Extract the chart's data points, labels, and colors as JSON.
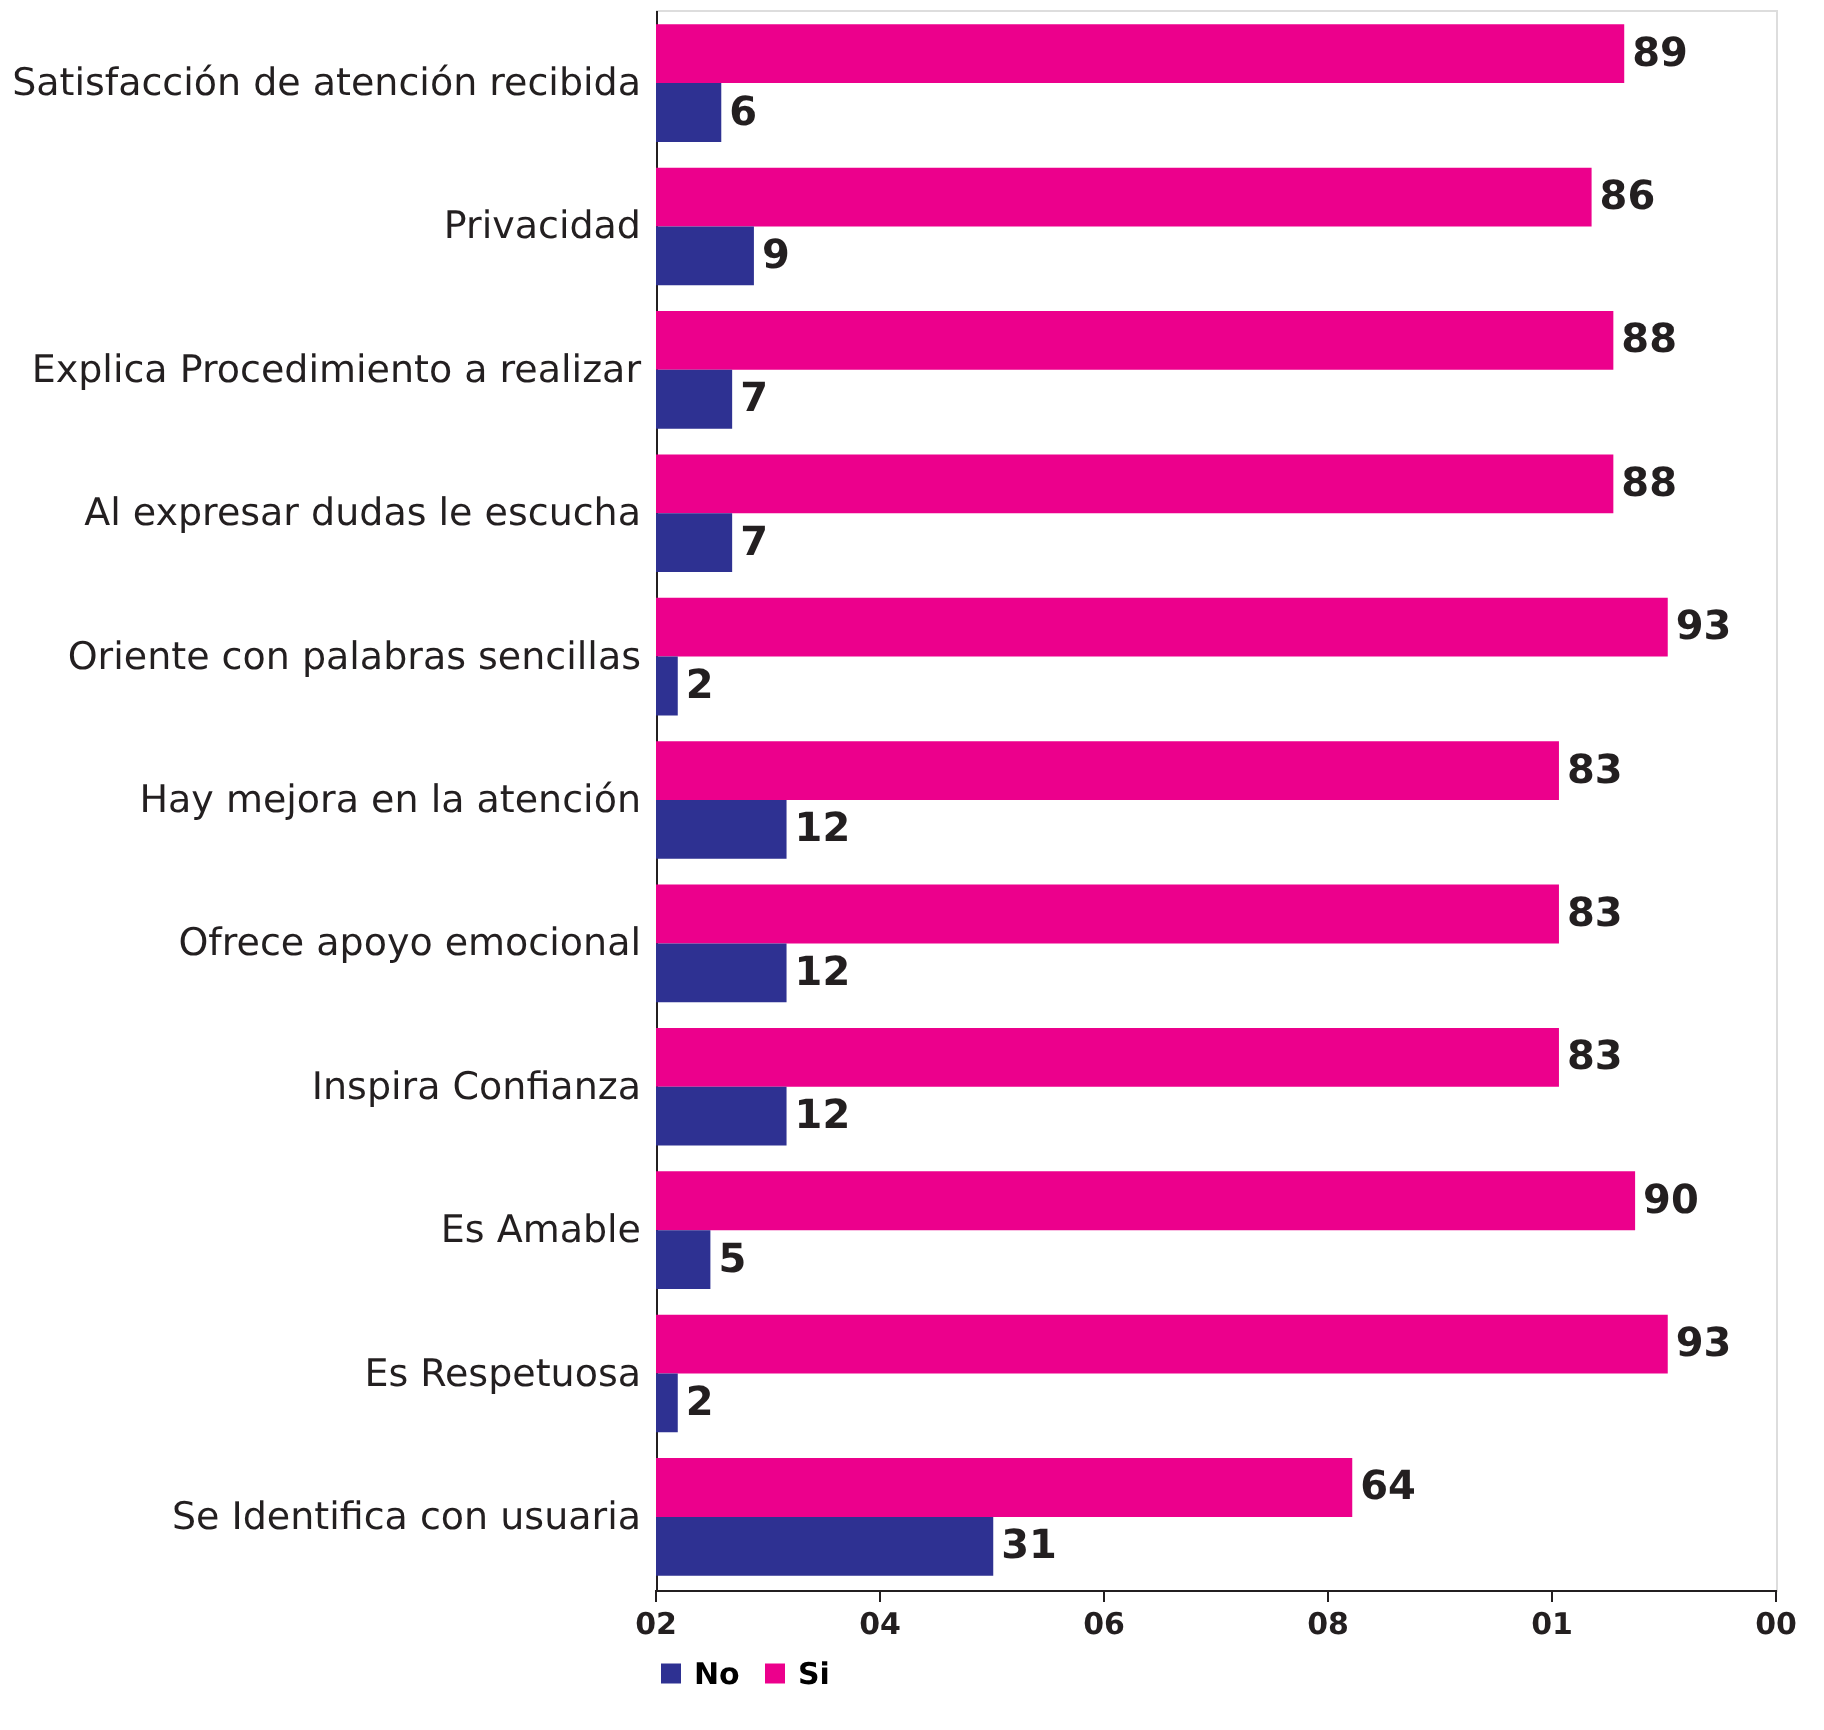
{
  "chart_data": {
    "type": "bar",
    "orientation": "horizontal",
    "categories": [
      "Satisfacción de atención recibida",
      "Privacidad",
      "Explica Procedimiento a realizar",
      "Al expresar dudas le escucha",
      "Oriente con palabras sencillas",
      "Hay mejora en la atención",
      "Ofrece apoyo emocional",
      "Inspira Confianza",
      "Es Amable",
      "Es Respetuosa",
      "Se Identifica con usuaria"
    ],
    "series": [
      {
        "name": "Si",
        "color": "#ec008c",
        "values": [
          89,
          86,
          88,
          88,
          93,
          83,
          83,
          83,
          90,
          93,
          64
        ]
      },
      {
        "name": "No",
        "color": "#2e3192",
        "values": [
          6,
          9,
          7,
          7,
          2,
          12,
          12,
          12,
          5,
          2,
          31
        ]
      }
    ],
    "annotations": [
      "02",
      "04",
      "06",
      "08",
      "01",
      "00"
    ],
    "data_labels": true,
    "legend": "bottom"
  }
}
